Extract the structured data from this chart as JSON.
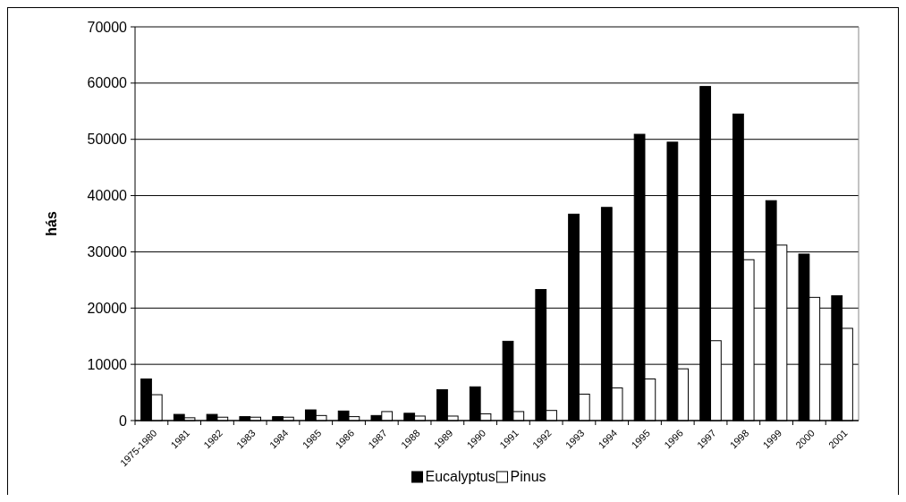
{
  "chart_data": {
    "type": "bar",
    "ylabel": "hás",
    "categories": [
      "1975-1980",
      "1981",
      "1982",
      "1983",
      "1984",
      "1985",
      "1986",
      "1987",
      "1988",
      "1989",
      "1990",
      "1991",
      "1992",
      "1993",
      "1994",
      "1995",
      "1996",
      "1997",
      "1998",
      "1999",
      "2000",
      "2001"
    ],
    "series": [
      {
        "name": "Eucalyptus",
        "color": "#000000",
        "values": [
          7400,
          1100,
          1100,
          700,
          700,
          1900,
          1700,
          900,
          1300,
          5500,
          6000,
          14100,
          23300,
          36700,
          37900,
          50900,
          49500,
          59400,
          54500,
          39100,
          29600,
          22200
        ]
      },
      {
        "name": "Pinus",
        "color": "#ffffff",
        "values": [
          4600,
          500,
          600,
          600,
          600,
          900,
          700,
          1600,
          800,
          800,
          1200,
          1600,
          1800,
          4700,
          5800,
          7400,
          9200,
          14200,
          28600,
          31200,
          21900,
          16400
        ]
      }
    ],
    "ylim": [
      0,
      70000
    ],
    "yticks": [
      0,
      10000,
      20000,
      30000,
      40000,
      50000,
      60000,
      70000
    ],
    "grid": "y",
    "legend": "bottom"
  }
}
